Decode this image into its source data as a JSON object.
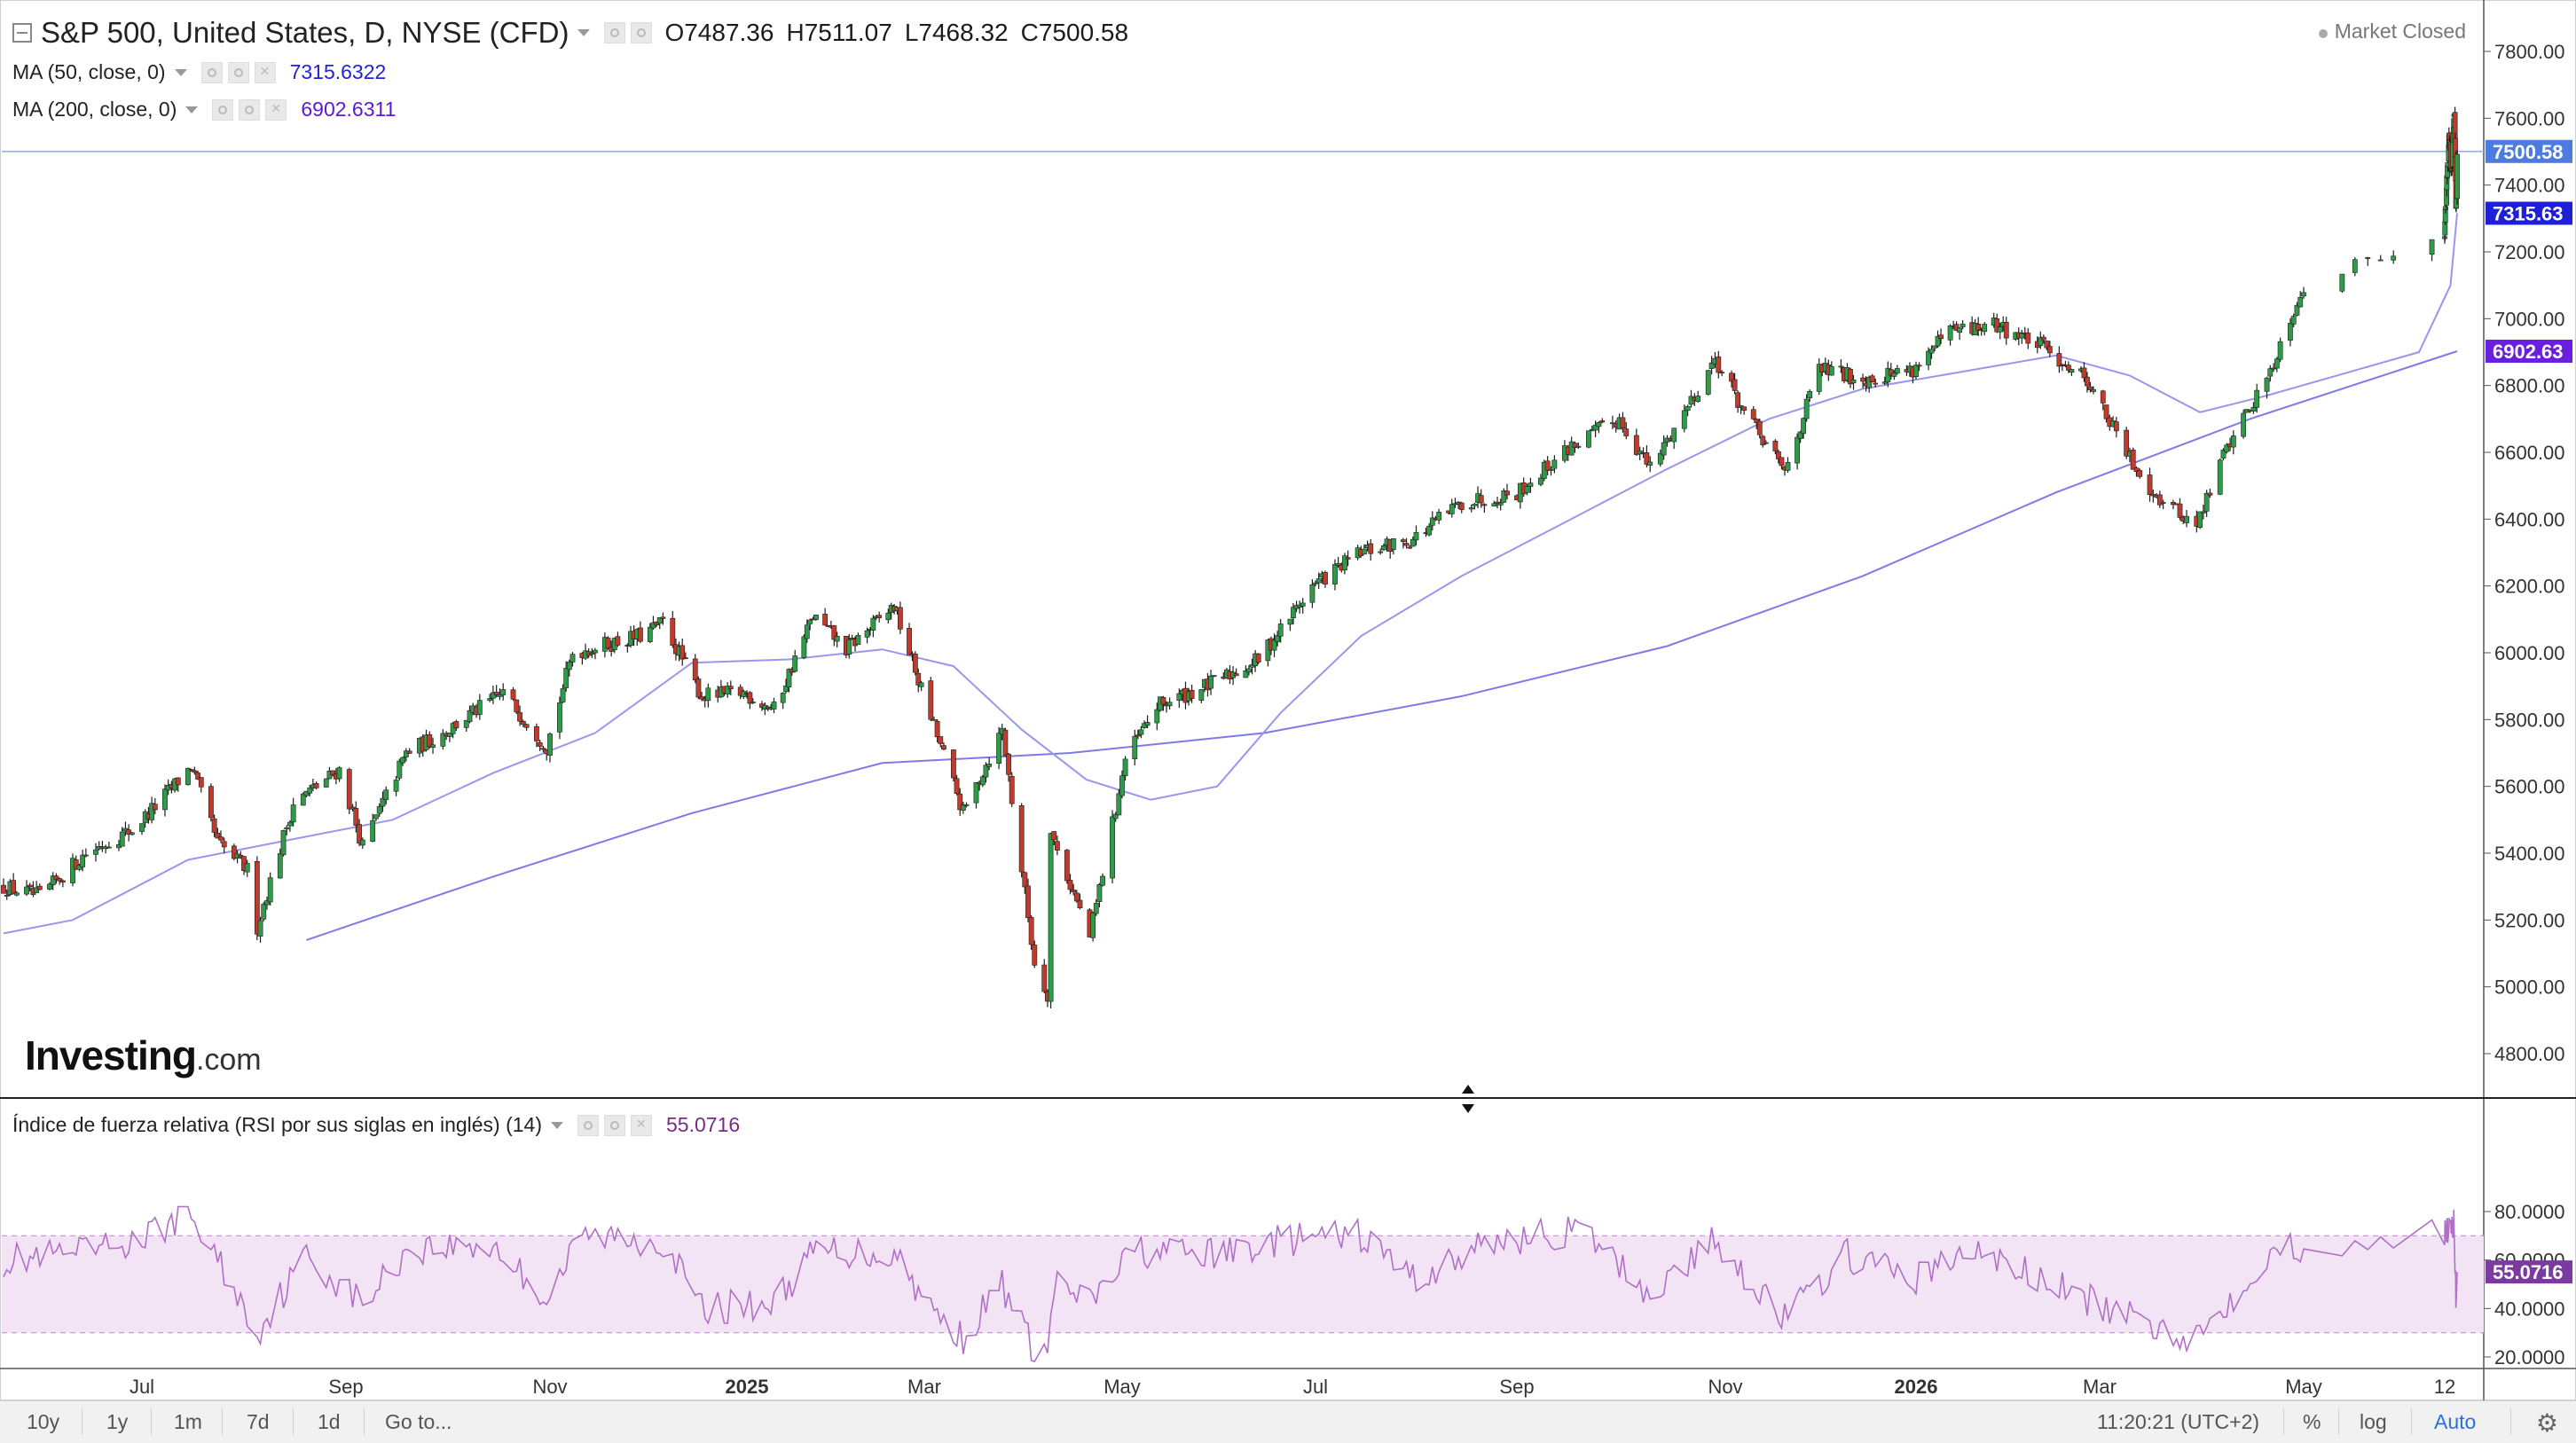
{
  "header": {
    "title": "S&P 500, United States, D, NYSE (CFD)",
    "ohlc": [
      {
        "k": "O",
        "v": "7487.36"
      },
      {
        "k": "H",
        "v": "7511.07"
      },
      {
        "k": "L",
        "v": "7468.32"
      },
      {
        "k": "C",
        "v": "7500.58"
      }
    ],
    "ma50_label": "MA (50, close, 0)",
    "ma50_value": "7315.6322",
    "ma200_label": "MA (200, close, 0)",
    "ma200_value": "6902.6311",
    "market_status": "Market Closed"
  },
  "rsi_header": {
    "label": "Índice de fuerza relativa (RSI por sus siglas en inglés) (14)",
    "value": "55.0716"
  },
  "logo": {
    "main": "Investing",
    "suffix": ".com"
  },
  "toolbar": {
    "ranges": [
      "10y",
      "1y",
      "1m",
      "7d",
      "1d"
    ],
    "goto": "Go to...",
    "time": "11:20:21 (UTC+2)",
    "percent": "%",
    "log": "log",
    "auto": "Auto"
  },
  "colors": {
    "up": "#2e9b48",
    "down": "#c23a2c",
    "ma50": "#9a96ee",
    "ma200": "#7e7ae8",
    "last_price_tag": "#4c7ce0",
    "ma50_tag": "#1f1fd8",
    "ma200_tag": "#6a1fe0",
    "rsi_line": "#b070c6",
    "rsi_band": "#f2e4f5",
    "rsi_value_tag": "#7a3aa0"
  },
  "chart_data": [
    {
      "type": "candlestick",
      "title": "S&P 500, United States, D, NYSE (CFD)",
      "x_labels": [
        "Jul",
        "Sep",
        "Nov",
        "2025",
        "Mar",
        "May",
        "Jul",
        "Sep",
        "Nov",
        "2026",
        "Mar",
        "May",
        "12"
      ],
      "x_label_dates": [
        "2024-07-01",
        "2024-09-01",
        "2024-11-01",
        "2025-01-01",
        "2025-03-01",
        "2025-05-01",
        "2025-07-01",
        "2025-09-01",
        "2025-11-01",
        "2026-01-01",
        "2026-03-01",
        "2026-05-01",
        "2026-05-12"
      ],
      "y_ticks": [
        4800,
        5000,
        5200,
        5400,
        5600,
        5800,
        6000,
        6200,
        6400,
        6600,
        6800,
        7000,
        7200,
        7400,
        7600,
        7800
      ],
      "y_tick_labels": [
        "4800.00",
        "5000.00",
        "5200.00",
        "5400.00",
        "5600.00",
        "5800.00",
        "6000.00",
        "6200.00",
        "6400.00",
        "6600.00",
        "6800.00",
        "7000.00",
        "7200.00",
        "7400.00",
        "7600.00",
        "7800.00"
      ],
      "ylim": [
        4690,
        7880
      ],
      "close_path": [
        [
          "2024-05-20",
          5300
        ],
        [
          "2024-05-31",
          5270
        ],
        [
          "2024-06-14",
          5400
        ],
        [
          "2024-06-28",
          5470
        ],
        [
          "2024-07-05",
          5540
        ],
        [
          "2024-07-16",
          5660
        ],
        [
          "2024-07-24",
          5430
        ],
        [
          "2024-08-02",
          5350
        ],
        [
          "2024-08-05",
          5180
        ],
        [
          "2024-08-16",
          5550
        ],
        [
          "2024-08-30",
          5650
        ],
        [
          "2024-09-06",
          5420
        ],
        [
          "2024-09-19",
          5700
        ],
        [
          "2024-09-30",
          5760
        ],
        [
          "2024-10-18",
          5880
        ],
        [
          "2024-10-31",
          5720
        ],
        [
          "2024-11-08",
          6000
        ],
        [
          "2024-11-29",
          6050
        ],
        [
          "2024-12-06",
          6090
        ],
        [
          "2024-12-18",
          5870
        ],
        [
          "2024-12-31",
          5880
        ],
        [
          "2025-01-10",
          5830
        ],
        [
          "2025-01-23",
          6110
        ],
        [
          "2025-02-03",
          6010
        ],
        [
          "2025-02-19",
          6140
        ],
        [
          "2025-03-04",
          5780
        ],
        [
          "2025-03-13",
          5520
        ],
        [
          "2025-03-25",
          5770
        ],
        [
          "2025-04-04",
          5070
        ],
        [
          "2025-04-08",
          4980
        ],
        [
          "2025-04-09",
          5460
        ],
        [
          "2025-04-21",
          5150
        ],
        [
          "2025-05-02",
          5680
        ],
        [
          "2025-05-12",
          5840
        ],
        [
          "2025-05-30",
          5910
        ],
        [
          "2025-06-13",
          5980
        ],
        [
          "2025-06-30",
          6200
        ],
        [
          "2025-07-15",
          6300
        ],
        [
          "2025-07-31",
          6340
        ],
        [
          "2025-08-15",
          6450
        ],
        [
          "2025-09-01",
          6480
        ],
        [
          "2025-09-17",
          6620
        ],
        [
          "2025-10-01",
          6700
        ],
        [
          "2025-10-10",
          6550
        ],
        [
          "2025-10-29",
          6880
        ],
        [
          "2025-11-07",
          6720
        ],
        [
          "2025-11-20",
          6540
        ],
        [
          "2025-12-01",
          6850
        ],
        [
          "2025-12-15",
          6820
        ],
        [
          "2025-12-31",
          6850
        ],
        [
          "2026-01-12",
          6960
        ],
        [
          "2026-01-27",
          6980
        ],
        [
          "2026-02-10",
          6920
        ],
        [
          "2026-02-25",
          6820
        ],
        [
          "2026-03-10",
          6580
        ],
        [
          "2026-03-18",
          6470
        ],
        [
          "2026-03-30",
          6380
        ],
        [
          "2026-04-08",
          6620
        ],
        [
          "2026-04-20",
          6820
        ],
        [
          "2026-04-30",
          7080
        ],
        [
          "2026-05-12",
          7270
        ],
        [
          "2026-05-26",
          7560
        ],
        [
          "2026-06-03",
          7420
        ],
        [
          "2026-06-12",
          7610
        ],
        [
          "2026-06-16",
          7500
        ],
        [
          "2026-06-18",
          7330
        ],
        [
          "2026-06-22",
          7500.58
        ]
      ],
      "ma50_path": [
        [
          "2024-05-20",
          5160
        ],
        [
          "2024-06-10",
          5200
        ],
        [
          "2024-07-15",
          5380
        ],
        [
          "2024-08-15",
          5440
        ],
        [
          "2024-09-15",
          5500
        ],
        [
          "2024-10-15",
          5640
        ],
        [
          "2024-11-15",
          5760
        ],
        [
          "2024-12-15",
          5970
        ],
        [
          "2025-01-15",
          5980
        ],
        [
          "2025-02-15",
          6010
        ],
        [
          "2025-03-10",
          5960
        ],
        [
          "2025-03-31",
          5770
        ],
        [
          "2025-04-20",
          5620
        ],
        [
          "2025-05-10",
          5560
        ],
        [
          "2025-05-31",
          5600
        ],
        [
          "2025-06-20",
          5820
        ],
        [
          "2025-07-15",
          6050
        ],
        [
          "2025-08-15",
          6230
        ],
        [
          "2025-09-15",
          6390
        ],
        [
          "2025-10-15",
          6550
        ],
        [
          "2025-11-15",
          6700
        ],
        [
          "2025-12-15",
          6790
        ],
        [
          "2026-01-15",
          6840
        ],
        [
          "2026-02-15",
          6890
        ],
        [
          "2026-03-10",
          6830
        ],
        [
          "2026-03-31",
          6720
        ],
        [
          "2026-04-20",
          6770
        ],
        [
          "2026-05-10",
          6900
        ],
        [
          "2026-05-31",
          7100
        ],
        [
          "2026-06-22",
          7315.63
        ]
      ],
      "ma200_path": [
        [
          "2024-08-20",
          5140
        ],
        [
          "2024-10-15",
          5330
        ],
        [
          "2024-12-15",
          5520
        ],
        [
          "2025-02-15",
          5670
        ],
        [
          "2025-04-15",
          5700
        ],
        [
          "2025-06-15",
          5760
        ],
        [
          "2025-08-15",
          5870
        ],
        [
          "2025-10-15",
          6020
        ],
        [
          "2025-12-15",
          6230
        ],
        [
          "2026-02-15",
          6480
        ],
        [
          "2026-04-15",
          6700
        ],
        [
          "2026-06-22",
          6902.63
        ]
      ],
      "price_tags": [
        {
          "label": "7500.58",
          "value": 7500.58,
          "color": "#4c7ce0"
        },
        {
          "label": "7315.63",
          "value": 7315.63,
          "color": "#1f1fd8"
        },
        {
          "label": "6902.63",
          "value": 6902.63,
          "color": "#6a1fe0"
        }
      ],
      "last_price_line": 7500.58,
      "grid": false,
      "ohlc_last": {
        "open": 7487.36,
        "high": 7511.07,
        "low": 7468.32,
        "close": 7500.58
      }
    },
    {
      "type": "line",
      "title": "Índice de fuerza relativa (RSI por sus siglas en inglés) (14)",
      "y_ticks": [
        20,
        40,
        60,
        80
      ],
      "y_tick_labels": [
        "20.0000",
        "40.0000",
        "60.0000",
        "80.0000"
      ],
      "ylim": [
        15,
        85
      ],
      "band": [
        30,
        70
      ],
      "last_value": 55.0716,
      "rsi_path": [
        [
          "2024-05-20",
          60
        ],
        [
          "2024-06-10",
          62
        ],
        [
          "2024-07-01",
          68
        ],
        [
          "2024-07-15",
          80
        ],
        [
          "2024-07-25",
          58
        ],
        [
          "2024-08-05",
          30
        ],
        [
          "2024-08-20",
          62
        ],
        [
          "2024-09-06",
          42
        ],
        [
          "2024-09-20",
          65
        ],
        [
          "2024-10-15",
          66
        ],
        [
          "2024-10-31",
          44
        ],
        [
          "2024-11-11",
          70
        ],
        [
          "2024-12-06",
          68
        ],
        [
          "2024-12-18",
          40
        ],
        [
          "2025-01-10",
          42
        ],
        [
          "2025-01-24",
          64
        ],
        [
          "2025-02-20",
          62
        ],
        [
          "2025-03-04",
          38
        ],
        [
          "2025-03-13",
          28
        ],
        [
          "2025-03-25",
          50
        ],
        [
          "2025-04-04",
          22
        ],
        [
          "2025-04-08",
          21
        ],
        [
          "2025-04-10",
          50
        ],
        [
          "2025-04-21",
          42
        ],
        [
          "2025-05-05",
          64
        ],
        [
          "2025-05-30",
          62
        ],
        [
          "2025-06-20",
          68
        ],
        [
          "2025-07-15",
          70
        ],
        [
          "2025-08-01",
          52
        ],
        [
          "2025-08-25",
          68
        ],
        [
          "2025-09-20",
          72
        ],
        [
          "2025-10-10",
          46
        ],
        [
          "2025-10-29",
          68
        ],
        [
          "2025-11-20",
          36
        ],
        [
          "2025-12-10",
          62
        ],
        [
          "2025-12-31",
          52
        ],
        [
          "2026-01-20",
          64
        ],
        [
          "2026-02-10",
          52
        ],
        [
          "2026-03-10",
          36
        ],
        [
          "2026-03-30",
          28
        ],
        [
          "2026-04-20",
          62
        ],
        [
          "2026-05-10",
          70
        ],
        [
          "2026-05-31",
          76
        ],
        [
          "2026-06-12",
          74
        ],
        [
          "2026-06-18",
          42
        ],
        [
          "2026-06-22",
          55.0716
        ]
      ]
    }
  ]
}
